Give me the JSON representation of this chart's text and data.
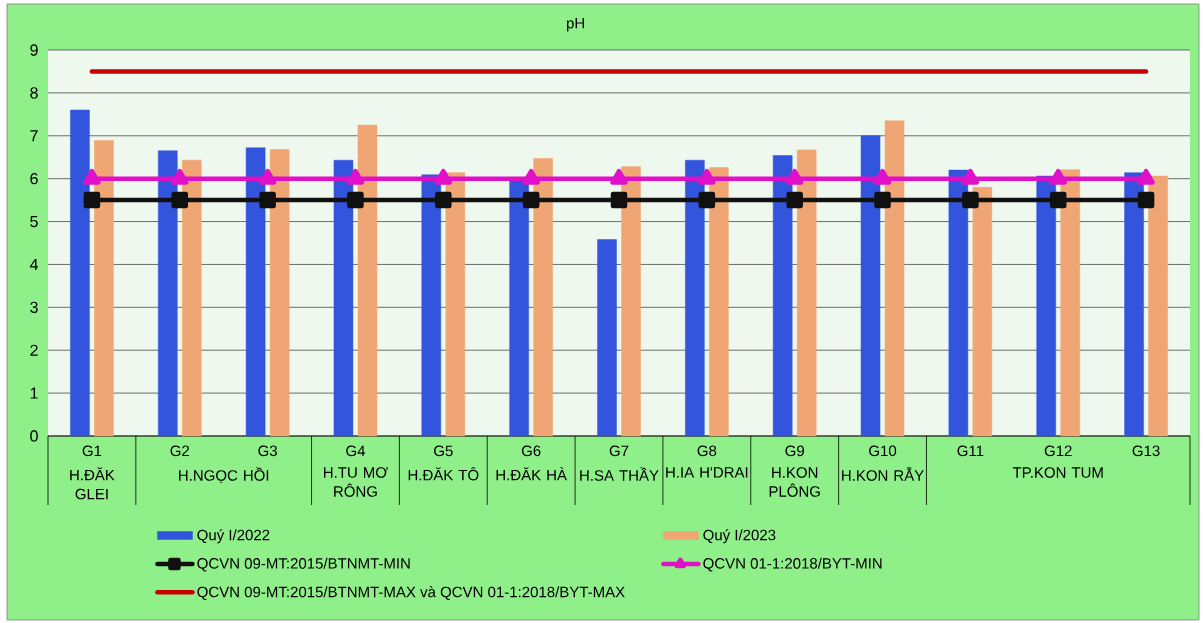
{
  "chart_data": {
    "type": "bar",
    "title": "pH",
    "categories": [
      "G1",
      "G2",
      "G3",
      "G4",
      "G5",
      "G6",
      "G7",
      "G8",
      "G9",
      "G10",
      "G11",
      "G12",
      "G13"
    ],
    "series": [
      {
        "name": "Quý I/2022",
        "color": "#3355dd",
        "values": [
          7.6,
          6.65,
          6.72,
          6.43,
          6.09,
          5.95,
          4.58,
          6.43,
          6.54,
          7.0,
          6.2,
          6.06,
          6.14
        ]
      },
      {
        "name": "Quý I/2023",
        "color": "#f0a574",
        "values": [
          6.89,
          6.43,
          6.68,
          7.25,
          6.14,
          6.47,
          6.28,
          6.26,
          6.67,
          7.35,
          5.8,
          6.21,
          6.06
        ]
      },
      {
        "name": "QCVN 09-MT:2015/BTNMT-MIN",
        "type": "line",
        "color": "#111111",
        "marker": "square",
        "values": [
          5.5,
          5.5,
          5.5,
          5.5,
          5.5,
          5.5,
          5.5,
          5.5,
          5.5,
          5.5,
          5.5,
          5.5,
          5.5
        ]
      },
      {
        "name": "QCVN 01-1:2018/BYT-MIN",
        "type": "line",
        "color": "#e010c8",
        "marker": "triangle",
        "values": [
          6,
          6,
          6,
          6,
          6,
          6,
          6,
          6,
          6,
          6,
          6,
          6,
          6
        ]
      },
      {
        "name": "QCVN 09-MT:2015/BTNMT-MAX và QCVN 01-1:2018/BYT-MAX",
        "type": "line",
        "color": "#c40000",
        "marker": "none",
        "values": [
          8.5,
          8.5,
          8.5,
          8.5,
          8.5,
          8.5,
          8.5,
          8.5,
          8.5,
          8.5,
          8.5,
          8.5,
          8.5
        ]
      }
    ],
    "ylim": [
      0,
      9
    ],
    "yticks": [
      0,
      1,
      2,
      3,
      4,
      5,
      6,
      7,
      8,
      9
    ],
    "grid": "y",
    "legend": "bottom",
    "annotations": [
      "H.ĐĂK GLEI",
      "H.NGỌC HỒI",
      "H.TU MƠ RÔNG",
      "H.ĐĂK TÔ",
      "H.ĐĂK HÀ",
      "H.SA THẦY",
      "H.IA H'DRAI",
      "H.KON PLÔNG",
      "H.KON RẪY",
      "TP.KON TUM"
    ]
  }
}
